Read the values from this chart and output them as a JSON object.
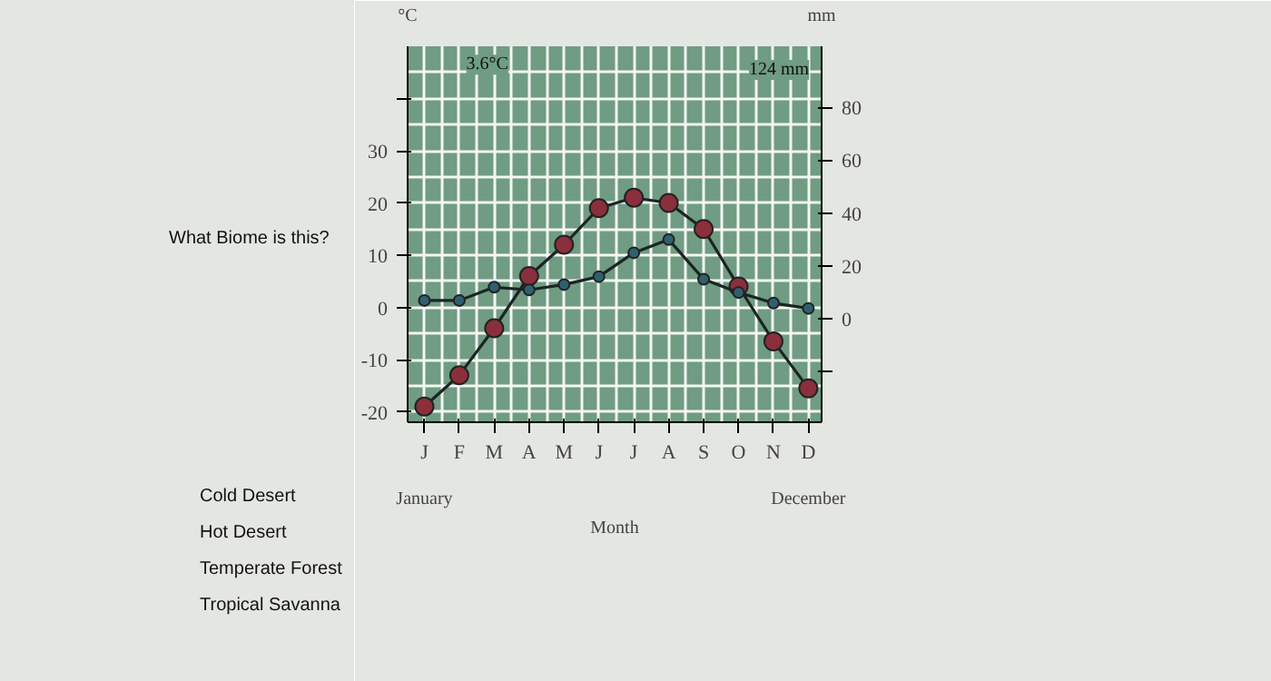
{
  "chart_data": {
    "type": "line",
    "categories": [
      "J",
      "F",
      "M",
      "A",
      "M",
      "J",
      "J",
      "A",
      "S",
      "O",
      "N",
      "D"
    ],
    "xlabel": "Month",
    "ylabel": "°C",
    "y2label": "mm",
    "series": [
      {
        "color": "#8b2f3c",
        "values": [
          -19,
          -13,
          -4,
          6,
          12,
          19,
          21,
          20,
          15,
          4,
          -6.5,
          -15.5
        ]
      },
      {
        "color": "#2f6070",
        "axis": "y2",
        "values": [
          7,
          7,
          12,
          11,
          13,
          16,
          25,
          30,
          15,
          10,
          6,
          4
        ]
      }
    ],
    "ylim": [
      -22,
      50
    ],
    "yticks": [
      -20,
      -10,
      0,
      10,
      20,
      30,
      {
        "value": 40,
        "label": null
      }
    ],
    "y2lim": [
      -39,
      103
    ],
    "y2ticks": [
      {
        "value": -20,
        "label": null
      },
      0,
      20,
      40,
      60,
      80
    ],
    "grid": true,
    "marker": "circle",
    "line_style": "solid",
    "annotations": [
      "3.6°C",
      "124 mm",
      "January",
      "December",
      "What Biome is this?",
      "Cold Desert",
      "Hot Desert",
      "Temperate Forest",
      "Tropical Savanna"
    ]
  }
}
